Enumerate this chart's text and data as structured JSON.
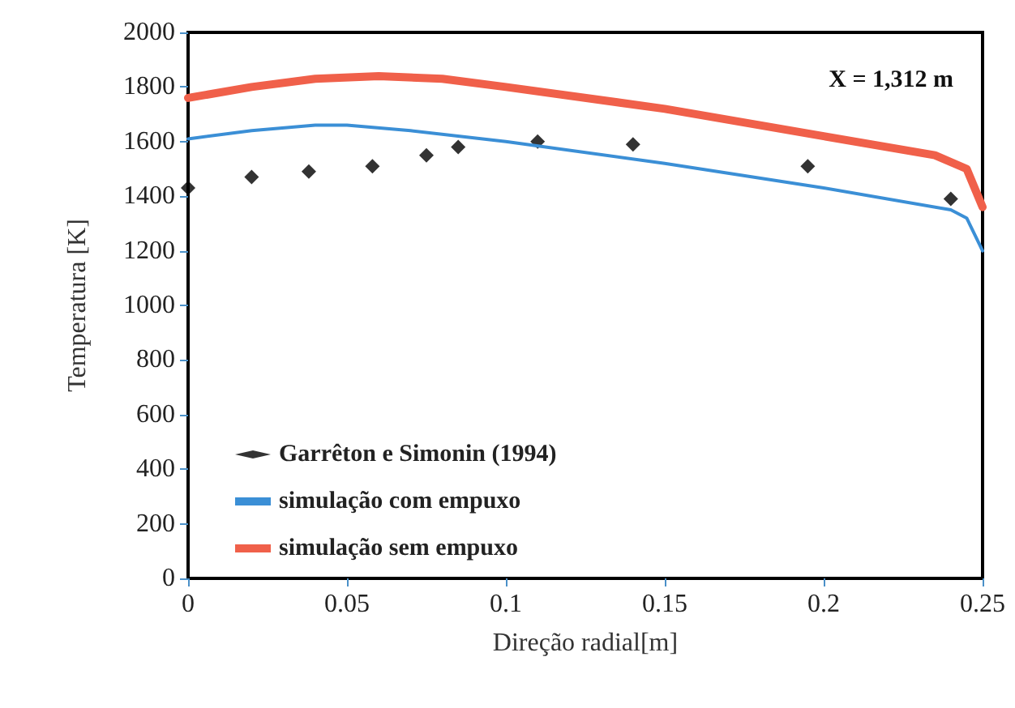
{
  "chart_data": {
    "type": "line",
    "xlabel": "Direção radial[m]",
    "ylabel": "Temperatura [K]",
    "xlim": [
      0,
      0.25
    ],
    "xticks": [
      0,
      0.05,
      0.1,
      0.15,
      0.2,
      0.25
    ],
    "ylim": [
      0,
      2000
    ],
    "yticks": [
      0,
      200,
      400,
      600,
      800,
      1000,
      1200,
      1400,
      1600,
      1800,
      2000
    ],
    "grid": false,
    "legend": "bottom left",
    "annotations": [
      "X = 1,312 m"
    ],
    "series": [
      {
        "name": "Garrêton e Simonin (1994)",
        "type": "scatter",
        "marker": "diamond",
        "color": "#000000",
        "x": [
          0,
          0.02,
          0.038,
          0.058,
          0.075,
          0.085,
          0.11,
          0.14,
          0.195,
          0.24
        ],
        "values": [
          1430,
          1470,
          1490,
          1510,
          1550,
          1580,
          1600,
          1590,
          1510,
          1390
        ]
      },
      {
        "name": "simulação com empuxo",
        "color": "#3b8fd6",
        "x": [
          0,
          0.02,
          0.04,
          0.05,
          0.07,
          0.1,
          0.15,
          0.2,
          0.24,
          0.245,
          0.25
        ],
        "values": [
          1610,
          1640,
          1660,
          1660,
          1640,
          1600,
          1520,
          1430,
          1350,
          1320,
          1200
        ]
      },
      {
        "name": "simulação sem empuxo",
        "color": "#f0604a",
        "x": [
          0,
          0.02,
          0.04,
          0.06,
          0.08,
          0.1,
          0.15,
          0.2,
          0.235,
          0.245,
          0.25
        ],
        "values": [
          1760,
          1800,
          1830,
          1840,
          1830,
          1800,
          1720,
          1620,
          1550,
          1500,
          1360
        ]
      }
    ]
  }
}
